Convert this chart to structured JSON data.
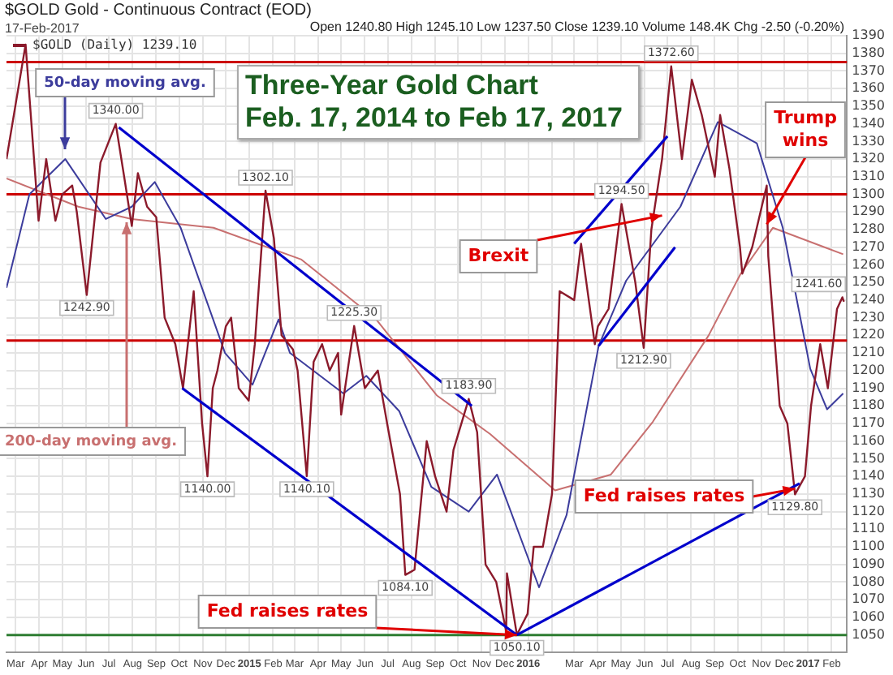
{
  "chart_data": {
    "type": "line",
    "title": "Three-Year Gold Chart\nFeb. 17, 2014 to Feb 17, 2017",
    "subtitle": "$GOLD Gold - Continuous Contract (EOD)",
    "xlim": [
      "2014-02-17",
      "2017-02-21"
    ],
    "ylim": [
      1040,
      1390
    ],
    "xticks": [
      {
        "value": "2014-03-01",
        "label": "Mar"
      },
      {
        "value": "2014-04-01",
        "label": "Apr"
      },
      {
        "value": "2014-05-01",
        "label": "May"
      },
      {
        "value": "2014-06-01",
        "label": "Jun"
      },
      {
        "value": "2014-07-01",
        "label": "Jul"
      },
      {
        "value": "2014-08-01",
        "label": "Aug"
      },
      {
        "value": "2014-09-01",
        "label": "Sep"
      },
      {
        "value": "2014-10-01",
        "label": "Oct"
      },
      {
        "value": "2014-11-01",
        "label": "Nov"
      },
      {
        "value": "2014-12-01",
        "label": "Dec"
      },
      {
        "value": "2015-01-01",
        "label": "2015"
      },
      {
        "value": "2015-02-01",
        "label": "Feb"
      },
      {
        "value": "2015-03-01",
        "label": "Mar"
      },
      {
        "value": "2015-04-01",
        "label": "Apr"
      },
      {
        "value": "2015-05-01",
        "label": "May"
      },
      {
        "value": "2015-06-01",
        "label": "Jun"
      },
      {
        "value": "2015-07-01",
        "label": "Jul"
      },
      {
        "value": "2015-08-01",
        "label": "Aug"
      },
      {
        "value": "2015-09-01",
        "label": "Sep"
      },
      {
        "value": "2015-10-01",
        "label": "Oct"
      },
      {
        "value": "2015-11-01",
        "label": "Nov"
      },
      {
        "value": "2015-12-01",
        "label": "Dec"
      },
      {
        "value": "2016-01-01",
        "label": "2016"
      },
      {
        "value": "2016-02-01",
        "label": null
      },
      {
        "value": "2016-03-01",
        "label": "Mar"
      },
      {
        "value": "2016-04-01",
        "label": "Apr"
      },
      {
        "value": "2016-05-01",
        "label": "May"
      },
      {
        "value": "2016-06-01",
        "label": "Jun"
      },
      {
        "value": "2016-07-01",
        "label": "Jul"
      },
      {
        "value": "2016-08-01",
        "label": "Aug"
      },
      {
        "value": "2016-09-01",
        "label": "Sep"
      },
      {
        "value": "2016-10-01",
        "label": "Oct"
      },
      {
        "value": "2016-11-01",
        "label": "Nov"
      },
      {
        "value": "2016-12-01",
        "label": "Dec"
      },
      {
        "value": "2017-01-01",
        "label": "2017"
      },
      {
        "value": "2017-02-01",
        "label": "Feb"
      }
    ],
    "yticks": [
      1050,
      1060,
      1070,
      1080,
      1090,
      1100,
      1110,
      1120,
      1130,
      1140,
      1150,
      1160,
      1170,
      1180,
      1190,
      1200,
      1210,
      1220,
      1230,
      1240,
      1250,
      1260,
      1270,
      1280,
      1290,
      1300,
      1310,
      1320,
      1330,
      1340,
      1350,
      1360,
      1370,
      1380,
      1390
    ],
    "grid": true,
    "legend": "top left",
    "series": [
      {
        "name": "$GOLD (Daily) 1239.10",
        "color": "#8b1a2b",
        "x": [
          "2014-02-17",
          "2014-03-14",
          "2014-03-31",
          "2014-04-10",
          "2014-04-22",
          "2014-05-01",
          "2014-05-14",
          "2014-05-20",
          "2014-06-02",
          "2014-06-20",
          "2014-07-10",
          "2014-07-21",
          "2014-07-31",
          "2014-08-08",
          "2014-08-20",
          "2014-09-01",
          "2014-09-12",
          "2014-09-26",
          "2014-10-06",
          "2014-10-20",
          "2014-10-31",
          "2014-11-07",
          "2014-11-14",
          "2014-11-20",
          "2014-12-01",
          "2014-12-08",
          "2014-12-18",
          "2014-12-31",
          "2015-01-08",
          "2015-01-22",
          "2015-02-02",
          "2015-02-12",
          "2015-02-27",
          "2015-03-05",
          "2015-03-17",
          "2015-03-26",
          "2015-04-06",
          "2015-04-16",
          "2015-04-27",
          "2015-05-01",
          "2015-05-18",
          "2015-06-01",
          "2015-06-18",
          "2015-07-01",
          "2015-07-17",
          "2015-07-24",
          "2015-08-05",
          "2015-08-21",
          "2015-09-01",
          "2015-09-16",
          "2015-09-25",
          "2015-10-15",
          "2015-10-26",
          "2015-11-06",
          "2015-11-20",
          "2015-12-03",
          "2015-12-04",
          "2015-12-17",
          "2015-12-31",
          "2016-01-08",
          "2016-01-20",
          "2016-02-01",
          "2016-02-11",
          "2016-03-01",
          "2016-03-10",
          "2016-03-28",
          "2016-04-01",
          "2016-04-15",
          "2016-05-02",
          "2016-05-20",
          "2016-05-31",
          "2016-06-10",
          "2016-06-24",
          "2016-07-06",
          "2016-07-20",
          "2016-08-02",
          "2016-08-15",
          "2016-09-01",
          "2016-09-08",
          "2016-09-20",
          "2016-10-04",
          "2016-10-07",
          "2016-10-20",
          "2016-11-08",
          "2016-11-10",
          "2016-11-25",
          "2016-12-05",
          "2016-12-15",
          "2016-12-28",
          "2017-01-05",
          "2017-01-17",
          "2017-01-27",
          "2017-02-08",
          "2017-02-15",
          "2017-02-17"
        ],
        "values": [
          1320,
          1385,
          1285,
          1320,
          1285,
          1300,
          1305,
          1290,
          1242.9,
          1318,
          1340,
          1310,
          1282,
          1312,
          1293,
          1287,
          1230,
          1215,
          1190,
          1245,
          1170,
          1140,
          1190,
          1200,
          1225,
          1230,
          1190,
          1183,
          1215,
          1302.1,
          1275,
          1220,
          1212,
          1200,
          1140.1,
          1205,
          1215,
          1200,
          1210,
          1175,
          1225.3,
          1190,
          1200,
          1168,
          1130,
          1084.1,
          1087,
          1160,
          1140,
          1120,
          1155,
          1183.9,
          1165,
          1090,
          1080,
          1052,
          1085,
          1050.1,
          1062,
          1100,
          1100,
          1130,
          1245,
          1240,
          1272,
          1215,
          1225,
          1235,
          1294.5,
          1250,
          1212.9,
          1280,
          1320,
          1372.6,
          1320,
          1365,
          1345,
          1310,
          1345,
          1315,
          1270,
          1255,
          1270,
          1305,
          1265,
          1180,
          1170,
          1129.8,
          1140,
          1180,
          1215,
          1190,
          1235,
          1241.6,
          1239.1
        ]
      },
      {
        "name": "50-day moving avg.",
        "color": "#3c3c9c",
        "x": [
          "2014-02-17",
          "2014-03-19",
          "2014-05-05",
          "2014-06-27",
          "2014-07-31",
          "2014-08-30",
          "2014-10-03",
          "2014-11-30",
          "2015-01-05",
          "2015-02-08",
          "2015-02-23",
          "2015-05-04",
          "2015-06-03",
          "2015-07-16",
          "2015-08-27",
          "2015-10-15",
          "2015-11-21",
          "2016-01-15",
          "2016-02-20",
          "2016-04-02",
          "2016-05-08",
          "2016-07-18",
          "2016-09-05",
          "2016-10-26",
          "2016-11-29",
          "2017-01-04",
          "2017-01-26",
          "2017-02-16"
        ],
        "values": [
          1247,
          1300,
          1320,
          1286,
          1293,
          1307,
          1281,
          1210,
          1192,
          1229,
          1210,
          1187,
          1197,
          1177,
          1134,
          1120,
          1141,
          1077,
          1118,
          1214,
          1251,
          1293,
          1341,
          1329,
          1281,
          1201,
          1178,
          1187
        ]
      },
      {
        "name": "200-day moving avg.",
        "color": "#c87070",
        "x": [
          "2014-02-17",
          "2014-05-22",
          "2014-07-31",
          "2014-11-15",
          "2015-03-10",
          "2015-06-16",
          "2015-09-03",
          "2015-11-12",
          "2016-02-05",
          "2016-04-18",
          "2016-06-12",
          "2016-08-24",
          "2016-10-05",
          "2016-11-16",
          "2017-02-16"
        ],
        "values": [
          1309,
          1293,
          1286,
          1281,
          1263,
          1229,
          1186,
          1164,
          1132,
          1141,
          1171,
          1220,
          1255,
          1281,
          1266
        ]
      },
      {
        "color": "#0000cc",
        "x": [
          "2014-07-14",
          "2015-10-19"
        ],
        "values": [
          1338,
          1180
        ]
      },
      {
        "color": "#0000cc",
        "x": [
          "2014-10-05",
          "2015-12-17"
        ],
        "values": [
          1190,
          1050
        ]
      },
      {
        "color": "#0000cc",
        "x": [
          "2015-12-17",
          "2016-12-21"
        ],
        "values": [
          1050,
          1136
        ]
      },
      {
        "color": "#0000cc",
        "x": [
          "2016-03-01",
          "2016-07-01"
        ],
        "values": [
          1272,
          1333
        ]
      },
      {
        "color": "#0000cc",
        "x": [
          "2016-04-02",
          "2016-07-11"
        ],
        "values": [
          1214,
          1270
        ]
      }
    ],
    "ref_lines": [
      {
        "axis": "y",
        "value": 1375,
        "color": "#cc0000"
      },
      {
        "axis": "y",
        "value": 1300,
        "color": "#cc0000"
      },
      {
        "axis": "y",
        "value": 1217,
        "color": "#cc0000"
      },
      {
        "axis": "y",
        "value": 1050,
        "color": "#2e7d32"
      }
    ],
    "annotations": [
      "17-Feb-2017",
      "Open 1240.80 High 1245.10 Low 1237.50 Close 1239.10 Volume 148.4K Chg -2.50 (-0.20%)",
      {
        "text": "Brexit",
        "x": "2016-06-24",
        "y": 1288
      },
      {
        "text": "Trump wins",
        "x": "2016-11-08",
        "y": 1283
      },
      {
        "text": "Fed raises rates",
        "x": "2015-12-17",
        "y": 1050
      },
      {
        "text": "Fed raises rates",
        "x": "2016-12-15",
        "y": 1133
      },
      {
        "text": "1340.00",
        "x": "2014-07-10",
        "y": 1340
      },
      {
        "text": "1242.90",
        "x": "2014-06-02",
        "y": 1242.9
      },
      {
        "text": "1302.10",
        "x": "2015-01-22",
        "y": 1302.1
      },
      {
        "text": "1225.30",
        "x": "2015-05-18",
        "y": 1225.3
      },
      {
        "text": "1140.00",
        "x": "2014-11-07",
        "y": 1140
      },
      {
        "text": "1140.10",
        "x": "2015-03-17",
        "y": 1140.1
      },
      {
        "text": "1084.10",
        "x": "2015-07-24",
        "y": 1084.1
      },
      {
        "text": "1183.90",
        "x": "2015-10-15",
        "y": 1183.9
      },
      {
        "text": "1050.10",
        "x": "2015-12-17",
        "y": 1050.1
      },
      {
        "text": "1294.50",
        "x": "2016-05-02",
        "y": 1294.5
      },
      {
        "text": "1212.90",
        "x": "2016-05-31",
        "y": 1212.9
      },
      {
        "text": "1372.60",
        "x": "2016-07-06",
        "y": 1372.6
      },
      {
        "text": "1129.80",
        "x": "2016-12-15",
        "y": 1129.8
      },
      {
        "text": "1241.60",
        "x": "2017-02-15",
        "y": 1241.6
      }
    ]
  }
}
